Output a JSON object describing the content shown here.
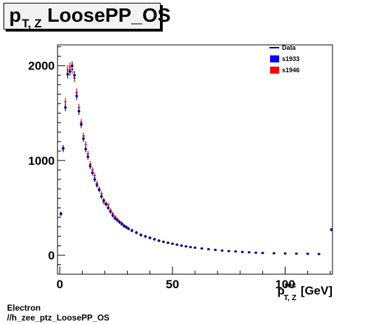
{
  "title": {
    "main": "p",
    "sub": "T, Z",
    "rest": "LoosePP_OS"
  },
  "caption": {
    "line1": "Electron",
    "line2": "//h_zee_ptz_LoosePP_OS"
  },
  "chart_data": {
    "type": "scatter",
    "xlabel_main": "p",
    "xlabel_sup": "rec",
    "xlabel_sub": "T, Z",
    "xlabel_unit": "[GeV]",
    "xlim": [
      -1,
      121
    ],
    "ylim": [
      -200,
      2220
    ],
    "x_ticks": [
      "0",
      "50",
      "100"
    ],
    "y_ticks": [
      "0",
      "1000",
      "2000"
    ],
    "legend_position": "top-right",
    "legend": [
      {
        "label": "Data",
        "color": "#00007f",
        "style": "line"
      },
      {
        "label": "s1933",
        "color": "#0000ff",
        "style": "box"
      },
      {
        "label": "s1946",
        "color": "#ff0000",
        "style": "box"
      }
    ],
    "series": [
      {
        "name": "s1946",
        "color": "#ff0000",
        "x": [
          0.5,
          1.5,
          2.5,
          3.5,
          4.5,
          5.5,
          6.5,
          7.5,
          8.5,
          9.5,
          10.5,
          11.5,
          12.5,
          13.5,
          14.5,
          15.5,
          16.5,
          17.5,
          18.5,
          19.5,
          20.5,
          21.5,
          22.5,
          23.5,
          24.5,
          25.5,
          26.5,
          27.5,
          28.5,
          29.5,
          30.5,
          32,
          34,
          36,
          38,
          40,
          42,
          44,
          46,
          48,
          50,
          52,
          54,
          56,
          58,
          60,
          63,
          66,
          69,
          72,
          75,
          78,
          81,
          84,
          87,
          90,
          95,
          100,
          105,
          110,
          115,
          120.5
        ],
        "y": [
          430,
          1120,
          1620,
          1960,
          1990,
          1960,
          1870,
          1720,
          1560,
          1400,
          1260,
          1170,
          1070,
          960,
          900,
          840,
          760,
          700,
          650,
          560,
          545,
          530,
          475,
          440,
          405,
          380,
          355,
          340,
          315,
          300,
          285,
          265,
          235,
          210,
          195,
          180,
          165,
          150,
          140,
          130,
          120,
          110,
          100,
          92,
          85,
          78,
          70,
          62,
          55,
          48,
          42,
          38,
          34,
          30,
          26,
          24,
          20,
          18,
          16,
          14,
          12,
          270
        ]
      },
      {
        "name": "Data",
        "color": "#00007f",
        "x": [
          0.5,
          1.5,
          2.5,
          3.5,
          4.5,
          5.5,
          6.5,
          7.5,
          8.5,
          9.5,
          10.5,
          11.5,
          12.5,
          13.5,
          14.5,
          15.5,
          16.5,
          17.5,
          18.5,
          19.5,
          20.5,
          21.5,
          22.5,
          23.5,
          24.5,
          25.5,
          26.5,
          27.5,
          28.5,
          29.5,
          30.5,
          32,
          34,
          36,
          38,
          40,
          42,
          44,
          46,
          48,
          50,
          52,
          54,
          56,
          58,
          60,
          63,
          66,
          69,
          72,
          75,
          78,
          81,
          84,
          87,
          90,
          95,
          100,
          105,
          110,
          115,
          120.5
        ],
        "y": [
          440,
          1130,
          1560,
          1910,
          1940,
          2000,
          1900,
          1680,
          1520,
          1380,
          1230,
          1120,
          1040,
          940,
          870,
          800,
          740,
          690,
          620,
          580,
          540,
          500,
          460,
          420,
          390,
          370,
          350,
          330,
          310,
          295,
          280,
          260,
          240,
          215,
          200,
          185,
          170,
          155,
          142,
          132,
          122,
          112,
          102,
          94,
          86,
          80,
          72,
          64,
          57,
          50,
          44,
          40,
          35,
          31,
          27,
          24,
          21,
          19,
          17,
          15,
          13,
          270
        ]
      }
    ]
  }
}
